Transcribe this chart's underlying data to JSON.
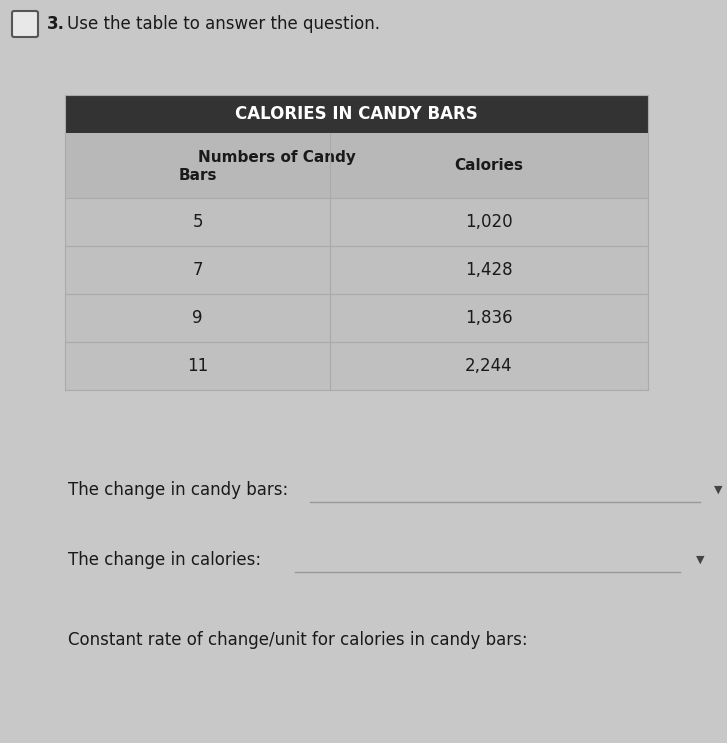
{
  "question_number": "3.",
  "question_text": "Use the table to answer the question.",
  "table_title": "CALORIES IN CANDY BARS",
  "col1_header_line1": "Numbers of Candy",
  "col1_header_line2": "Bars",
  "col2_header": "Calories",
  "rows": [
    [
      "5",
      "1,020"
    ],
    [
      "7",
      "1,428"
    ],
    [
      "9",
      "1,836"
    ],
    [
      "11",
      "2,244"
    ]
  ],
  "label1": "The change in candy bars:",
  "label2": "The change in calories:",
  "label3": "Constant rate of change/unit for calories in candy bars:",
  "bg_color": "#c8c8c8",
  "table_header_bg": "#333333",
  "table_header_color": "#ffffff",
  "table_subheader_bg": "#b8b8b8",
  "table_cell_bg": "#c0c0c0",
  "table_border_color": "#aaaaaa",
  "input_line_color": "#999999",
  "dropdown_arrow_color": "#444444",
  "text_color": "#1a1a1a",
  "font_family": "DejaVu Sans"
}
